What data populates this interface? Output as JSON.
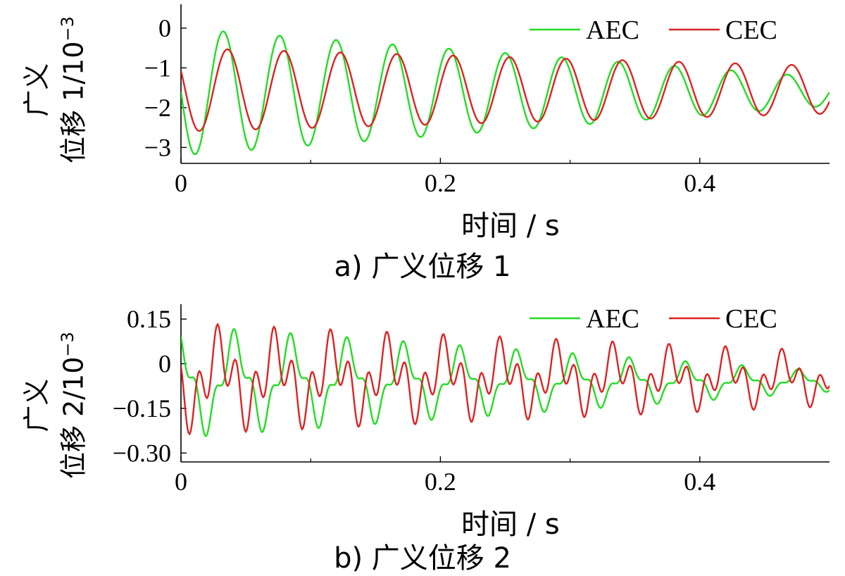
{
  "chart_data": [
    {
      "type": "line",
      "caption": "a) 广义位移 1",
      "xlabel": "时间 / s",
      "ylabel": "广义位移 1/10⁻³",
      "ylabel_line1": "广义",
      "ylabel_line2": "位移 1/10",
      "ylabel_exp": "−3",
      "xlim": [
        0,
        0.5
      ],
      "ylim": [
        -3.4,
        0.6
      ],
      "xticks": [
        0,
        0.2,
        0.4
      ],
      "xtick_labels": [
        "0",
        "0.2",
        "0.4"
      ],
      "yticks": [
        0,
        -1,
        -2,
        -3
      ],
      "ytick_labels": [
        "0",
        "−1",
        "−2",
        "−3"
      ],
      "legend_position": "top-right",
      "series": [
        {
          "name": "AEC",
          "color": "#22dd22",
          "model": {
            "type": "damped_sine",
            "mean": -1.6,
            "amp0": 1.6,
            "amp_end": 0.35,
            "period": 0.0435,
            "phase": 1.5708
          }
        },
        {
          "name": "CEC",
          "color": "#dd2222",
          "model": {
            "type": "damped_sine",
            "mean": -1.55,
            "amp0": 1.05,
            "amp_end": 0.6,
            "period": 0.0435,
            "phase": 1.1
          }
        }
      ]
    },
    {
      "type": "line",
      "caption": "b) 广义位移 2",
      "xlabel": "时间 / s",
      "ylabel": "广义位移 2/10⁻³",
      "ylabel_line1": "广义",
      "ylabel_line2": "位移 2/10",
      "ylabel_exp": "−3",
      "xlim": [
        0,
        0.5
      ],
      "ylim": [
        -0.33,
        0.2
      ],
      "xticks": [
        0,
        0.2,
        0.4
      ],
      "xtick_labels": [
        "0",
        "0.2",
        "0.4"
      ],
      "yticks": [
        0.15,
        0,
        -0.15,
        -0.3
      ],
      "ytick_labels": [
        "0.15",
        "0",
        "−0.15",
        "−0.30"
      ],
      "legend_position": "top-right",
      "series": [
        {
          "name": "AEC",
          "color": "#22dd22",
          "model": {
            "type": "multi_sine",
            "offset": -0.06,
            "amps": [
              0.14,
              0.05
            ],
            "amp_end_scale": 0.18,
            "periods": [
              0.0435,
              0.0145
            ],
            "phases": [
              0.3,
              1.2
            ]
          }
        },
        {
          "name": "CEC",
          "color": "#dd2222",
          "model": {
            "type": "multi_sine",
            "offset": -0.05,
            "amps": [
              0.1,
              0.09
            ],
            "amp_end_scale": 0.5,
            "periods": [
              0.0435,
              0.0145
            ],
            "phases": [
              2.0,
              0.4
            ]
          }
        }
      ]
    }
  ]
}
